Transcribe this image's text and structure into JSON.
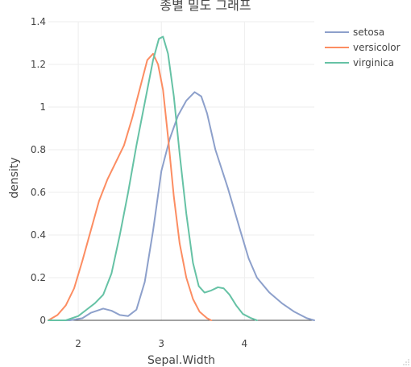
{
  "chart_data": {
    "type": "line",
    "title": "종별 밀도 그래프",
    "xlabel": "Sepal.Width",
    "ylabel": "density",
    "xlim": [
      1.64,
      4.84
    ],
    "ylim": [
      0,
      1.4
    ],
    "xticks": [
      2,
      3,
      4
    ],
    "yticks": [
      0,
      0.2,
      0.4,
      0.6,
      0.8,
      1,
      1.2,
      1.4
    ],
    "grid": true,
    "legend_position": "top-right",
    "series": [
      {
        "name": "setosa",
        "color": "#8da0cb",
        "points": [
          [
            1.64,
            0.0
          ],
          [
            1.9,
            0.0
          ],
          [
            2.05,
            0.01
          ],
          [
            2.15,
            0.035
          ],
          [
            2.3,
            0.055
          ],
          [
            2.4,
            0.045
          ],
          [
            2.5,
            0.025
          ],
          [
            2.6,
            0.02
          ],
          [
            2.7,
            0.05
          ],
          [
            2.8,
            0.18
          ],
          [
            2.9,
            0.42
          ],
          [
            3.0,
            0.7
          ],
          [
            3.1,
            0.85
          ],
          [
            3.2,
            0.96
          ],
          [
            3.3,
            1.03
          ],
          [
            3.4,
            1.07
          ],
          [
            3.48,
            1.05
          ],
          [
            3.55,
            0.97
          ],
          [
            3.65,
            0.8
          ],
          [
            3.8,
            0.62
          ],
          [
            3.95,
            0.42
          ],
          [
            4.05,
            0.29
          ],
          [
            4.15,
            0.2
          ],
          [
            4.3,
            0.13
          ],
          [
            4.45,
            0.08
          ],
          [
            4.6,
            0.04
          ],
          [
            4.75,
            0.01
          ],
          [
            4.84,
            0.0
          ]
        ]
      },
      {
        "name": "versicolor",
        "color": "#fc8d62",
        "points": [
          [
            1.64,
            0.0
          ],
          [
            1.75,
            0.025
          ],
          [
            1.85,
            0.07
          ],
          [
            1.95,
            0.15
          ],
          [
            2.05,
            0.28
          ],
          [
            2.15,
            0.42
          ],
          [
            2.25,
            0.56
          ],
          [
            2.35,
            0.66
          ],
          [
            2.45,
            0.74
          ],
          [
            2.55,
            0.82
          ],
          [
            2.65,
            0.95
          ],
          [
            2.75,
            1.1
          ],
          [
            2.83,
            1.22
          ],
          [
            2.9,
            1.25
          ],
          [
            2.96,
            1.2
          ],
          [
            3.02,
            1.08
          ],
          [
            3.08,
            0.86
          ],
          [
            3.15,
            0.58
          ],
          [
            3.22,
            0.36
          ],
          [
            3.3,
            0.2
          ],
          [
            3.38,
            0.1
          ],
          [
            3.46,
            0.04
          ],
          [
            3.55,
            0.01
          ],
          [
            3.6,
            0.0
          ]
        ]
      },
      {
        "name": "virginica",
        "color": "#66c2a5",
        "points": [
          [
            1.64,
            0.0
          ],
          [
            1.85,
            0.0
          ],
          [
            2.0,
            0.02
          ],
          [
            2.1,
            0.05
          ],
          [
            2.2,
            0.08
          ],
          [
            2.3,
            0.12
          ],
          [
            2.4,
            0.22
          ],
          [
            2.5,
            0.4
          ],
          [
            2.6,
            0.6
          ],
          [
            2.7,
            0.82
          ],
          [
            2.8,
            1.02
          ],
          [
            2.9,
            1.22
          ],
          [
            2.97,
            1.32
          ],
          [
            3.02,
            1.33
          ],
          [
            3.08,
            1.25
          ],
          [
            3.15,
            1.05
          ],
          [
            3.22,
            0.78
          ],
          [
            3.3,
            0.5
          ],
          [
            3.38,
            0.27
          ],
          [
            3.45,
            0.16
          ],
          [
            3.52,
            0.13
          ],
          [
            3.6,
            0.14
          ],
          [
            3.68,
            0.155
          ],
          [
            3.75,
            0.15
          ],
          [
            3.82,
            0.12
          ],
          [
            3.9,
            0.07
          ],
          [
            3.98,
            0.03
          ],
          [
            4.08,
            0.01
          ],
          [
            4.15,
            0.0
          ]
        ]
      }
    ]
  }
}
